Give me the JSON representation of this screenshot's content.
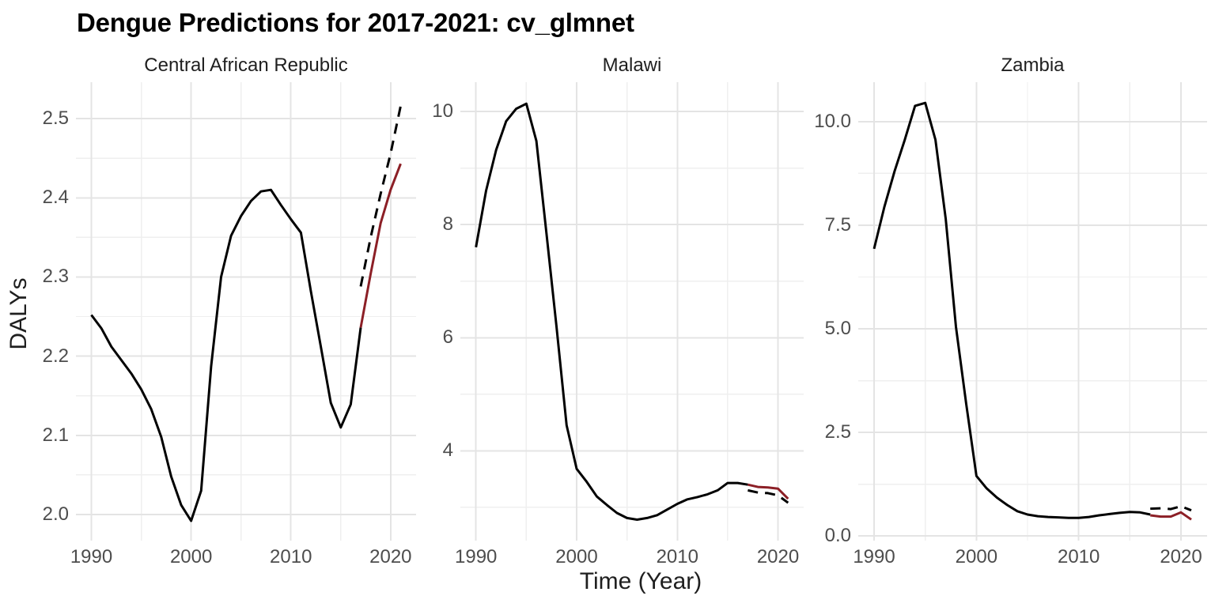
{
  "title": "Dengue Predictions for 2017-2021: cv_glmnet",
  "axes": {
    "x_label": "Time (Year)",
    "y_label": "DALYs"
  },
  "style": {
    "background": "#FFFFFF",
    "title_color": "#000000",
    "strip_text_color": "#1F1F1F",
    "axis_text_color": "#4D4D4D",
    "axis_title_color": "#1F1F1F",
    "grid_major_color": "#E4E4E4",
    "grid_minor_color": "#EFEFEF",
    "observed_color": "#000000",
    "dashed_color": "#000000",
    "prediction_color": "#8C1F26"
  },
  "chart_data": [
    {
      "type": "line",
      "facet": "Central African Republic",
      "xlabel": "Time (Year)",
      "ylabel": "DALYs",
      "xlim": [
        1988.45,
        2022.55
      ],
      "ylim": [
        1.967,
        2.546
      ],
      "x_ticks": [
        1990,
        2000,
        2010,
        2020
      ],
      "x_tick_labels": [
        "1990",
        "2000",
        "2010",
        "2020"
      ],
      "x_minor_ticks": [
        1995,
        2005,
        2015
      ],
      "y_ticks": [
        2.0,
        2.1,
        2.2,
        2.3,
        2.4,
        2.5
      ],
      "y_tick_labels": [
        "2.0",
        "2.1",
        "2.2",
        "2.3",
        "2.4",
        "2.5"
      ],
      "y_minor_ticks": [
        2.05,
        2.15,
        2.25,
        2.35,
        2.45
      ],
      "grid": true,
      "legend": "none",
      "series": [
        {
          "name": "observed",
          "style": "solid",
          "color": "#000000",
          "x": [
            1990,
            1991,
            1992,
            1993,
            1994,
            1995,
            1996,
            1997,
            1998,
            1999,
            2000,
            2001,
            2002,
            2003,
            2004,
            2005,
            2006,
            2007,
            2008,
            2009,
            2010,
            2011,
            2012,
            2013,
            2014,
            2015,
            2016,
            2017
          ],
          "y": [
            2.252,
            2.235,
            2.212,
            2.195,
            2.178,
            2.158,
            2.133,
            2.098,
            2.048,
            2.012,
            1.992,
            2.03,
            2.187,
            2.3,
            2.352,
            2.377,
            2.396,
            2.408,
            2.41,
            2.391,
            2.373,
            2.356,
            2.282,
            2.212,
            2.141,
            2.11,
            2.139,
            2.236
          ]
        },
        {
          "name": "dashed_black",
          "style": "dashed",
          "color": "#000000",
          "x": [
            2017,
            2018,
            2019,
            2020,
            2021
          ],
          "y": [
            2.288,
            2.35,
            2.405,
            2.456,
            2.516
          ]
        },
        {
          "name": "predicted_red",
          "style": "solid",
          "color": "#8C1F26",
          "x": [
            2017,
            2018,
            2019,
            2020,
            2021
          ],
          "y": [
            2.236,
            2.304,
            2.368,
            2.41,
            2.443
          ]
        }
      ]
    },
    {
      "type": "line",
      "facet": "Malawi",
      "xlabel": "Time (Year)",
      "ylabel": "DALYs",
      "xlim": [
        1988.45,
        2022.55
      ],
      "ylim": [
        2.41,
        10.52
      ],
      "x_ticks": [
        1990,
        2000,
        2010,
        2020
      ],
      "x_tick_labels": [
        "1990",
        "2000",
        "2010",
        "2020"
      ],
      "x_minor_ticks": [
        1995,
        2005,
        2015
      ],
      "y_ticks": [
        4,
        6,
        8,
        10
      ],
      "y_tick_labels": [
        "4",
        "6",
        "8",
        "10"
      ],
      "y_minor_ticks": [
        3,
        5,
        7,
        9
      ],
      "grid": true,
      "legend": "none",
      "series": [
        {
          "name": "observed",
          "style": "solid",
          "color": "#000000",
          "x": [
            1990,
            1991,
            1992,
            1993,
            1994,
            1995,
            1996,
            1997,
            1998,
            1999,
            2000,
            2001,
            2002,
            2003,
            2004,
            2005,
            2006,
            2007,
            2008,
            2009,
            2010,
            2011,
            2012,
            2013,
            2014,
            2015,
            2016,
            2017
          ],
          "y": [
            7.6,
            8.6,
            9.32,
            9.83,
            10.05,
            10.14,
            9.48,
            7.85,
            6.2,
            4.45,
            3.68,
            3.45,
            3.19,
            3.04,
            2.9,
            2.81,
            2.78,
            2.81,
            2.86,
            2.96,
            3.06,
            3.14,
            3.18,
            3.23,
            3.3,
            3.43,
            3.43,
            3.4
          ]
        },
        {
          "name": "dashed_black",
          "style": "dashed",
          "color": "#000000",
          "x": [
            2017,
            2018,
            2019,
            2020,
            2021
          ],
          "y": [
            3.3,
            3.26,
            3.25,
            3.21,
            3.08
          ]
        },
        {
          "name": "predicted_red",
          "style": "solid",
          "color": "#8C1F26",
          "x": [
            2017,
            2018,
            2019,
            2020,
            2021
          ],
          "y": [
            3.4,
            3.36,
            3.35,
            3.33,
            3.15
          ]
        }
      ]
    },
    {
      "type": "line",
      "facet": "Zambia",
      "xlabel": "Time (Year)",
      "ylabel": "DALYs",
      "xlim": [
        1988.45,
        2022.55
      ],
      "ylim": [
        -0.11,
        10.95
      ],
      "x_ticks": [
        1990,
        2000,
        2010,
        2020
      ],
      "x_tick_labels": [
        "1990",
        "2000",
        "2010",
        "2020"
      ],
      "x_minor_ticks": [
        1995,
        2005,
        2015
      ],
      "y_ticks": [
        0.0,
        2.5,
        5.0,
        7.5,
        10.0
      ],
      "y_tick_labels": [
        "0.0",
        "2.5",
        "5.0",
        "7.5",
        "10.0"
      ],
      "y_minor_ticks": [
        1.25,
        3.75,
        6.25,
        8.75
      ],
      "grid": true,
      "legend": "none",
      "series": [
        {
          "name": "observed",
          "style": "solid",
          "color": "#000000",
          "x": [
            1990,
            1991,
            1992,
            1993,
            1994,
            1995,
            1996,
            1997,
            1998,
            1999,
            2000,
            2001,
            2002,
            2003,
            2004,
            2005,
            2006,
            2007,
            2008,
            2009,
            2010,
            2011,
            2012,
            2013,
            2014,
            2015,
            2016,
            2017
          ],
          "y": [
            6.93,
            7.94,
            8.8,
            9.56,
            10.38,
            10.45,
            9.56,
            7.65,
            5.05,
            3.2,
            1.45,
            1.15,
            0.93,
            0.75,
            0.6,
            0.52,
            0.48,
            0.46,
            0.45,
            0.44,
            0.44,
            0.46,
            0.5,
            0.53,
            0.56,
            0.58,
            0.57,
            0.52
          ]
        },
        {
          "name": "dashed_black",
          "style": "dashed",
          "color": "#000000",
          "x": [
            2017,
            2018,
            2019,
            2020,
            2021
          ],
          "y": [
            0.66,
            0.67,
            0.65,
            0.72,
            0.62
          ]
        },
        {
          "name": "predicted_red",
          "style": "solid",
          "color": "#8C1F26",
          "x": [
            2017,
            2018,
            2019,
            2020,
            2021
          ],
          "y": [
            0.5,
            0.47,
            0.47,
            0.57,
            0.4
          ]
        }
      ]
    }
  ]
}
